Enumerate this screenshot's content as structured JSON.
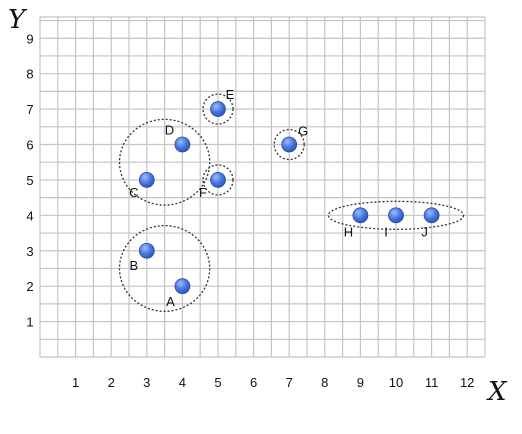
{
  "chart_data": {
    "type": "scatter",
    "xlabel": "X",
    "ylabel": "Y",
    "xlim": [
      0,
      12.5
    ],
    "ylim": [
      0,
      9.6
    ],
    "x_ticks": [
      "1",
      "2",
      "3",
      "4",
      "5",
      "6",
      "7",
      "8",
      "9",
      "10",
      "11",
      "12"
    ],
    "y_ticks": [
      "1",
      "2",
      "3",
      "4",
      "5",
      "6",
      "7",
      "8",
      "9"
    ],
    "grid": true,
    "point_color": "#4a78e0",
    "points": [
      {
        "label": "A",
        "x": 4,
        "y": 2
      },
      {
        "label": "B",
        "x": 3,
        "y": 3
      },
      {
        "label": "C",
        "x": 3,
        "y": 5
      },
      {
        "label": "D",
        "x": 4,
        "y": 6
      },
      {
        "label": "E",
        "x": 5,
        "y": 7
      },
      {
        "label": "F",
        "x": 5,
        "y": 5
      },
      {
        "label": "G",
        "x": 7,
        "y": 6
      },
      {
        "label": "H",
        "x": 9,
        "y": 4
      },
      {
        "label": "I",
        "x": 10,
        "y": 4
      },
      {
        "label": "J",
        "x": 11,
        "y": 4
      }
    ],
    "clusters": [
      {
        "members": [
          "A",
          "B"
        ]
      },
      {
        "members": [
          "C",
          "D"
        ]
      },
      {
        "members": [
          "E"
        ]
      },
      {
        "members": [
          "F"
        ]
      },
      {
        "members": [
          "G"
        ]
      },
      {
        "members": [
          "H",
          "I",
          "J"
        ]
      }
    ]
  }
}
